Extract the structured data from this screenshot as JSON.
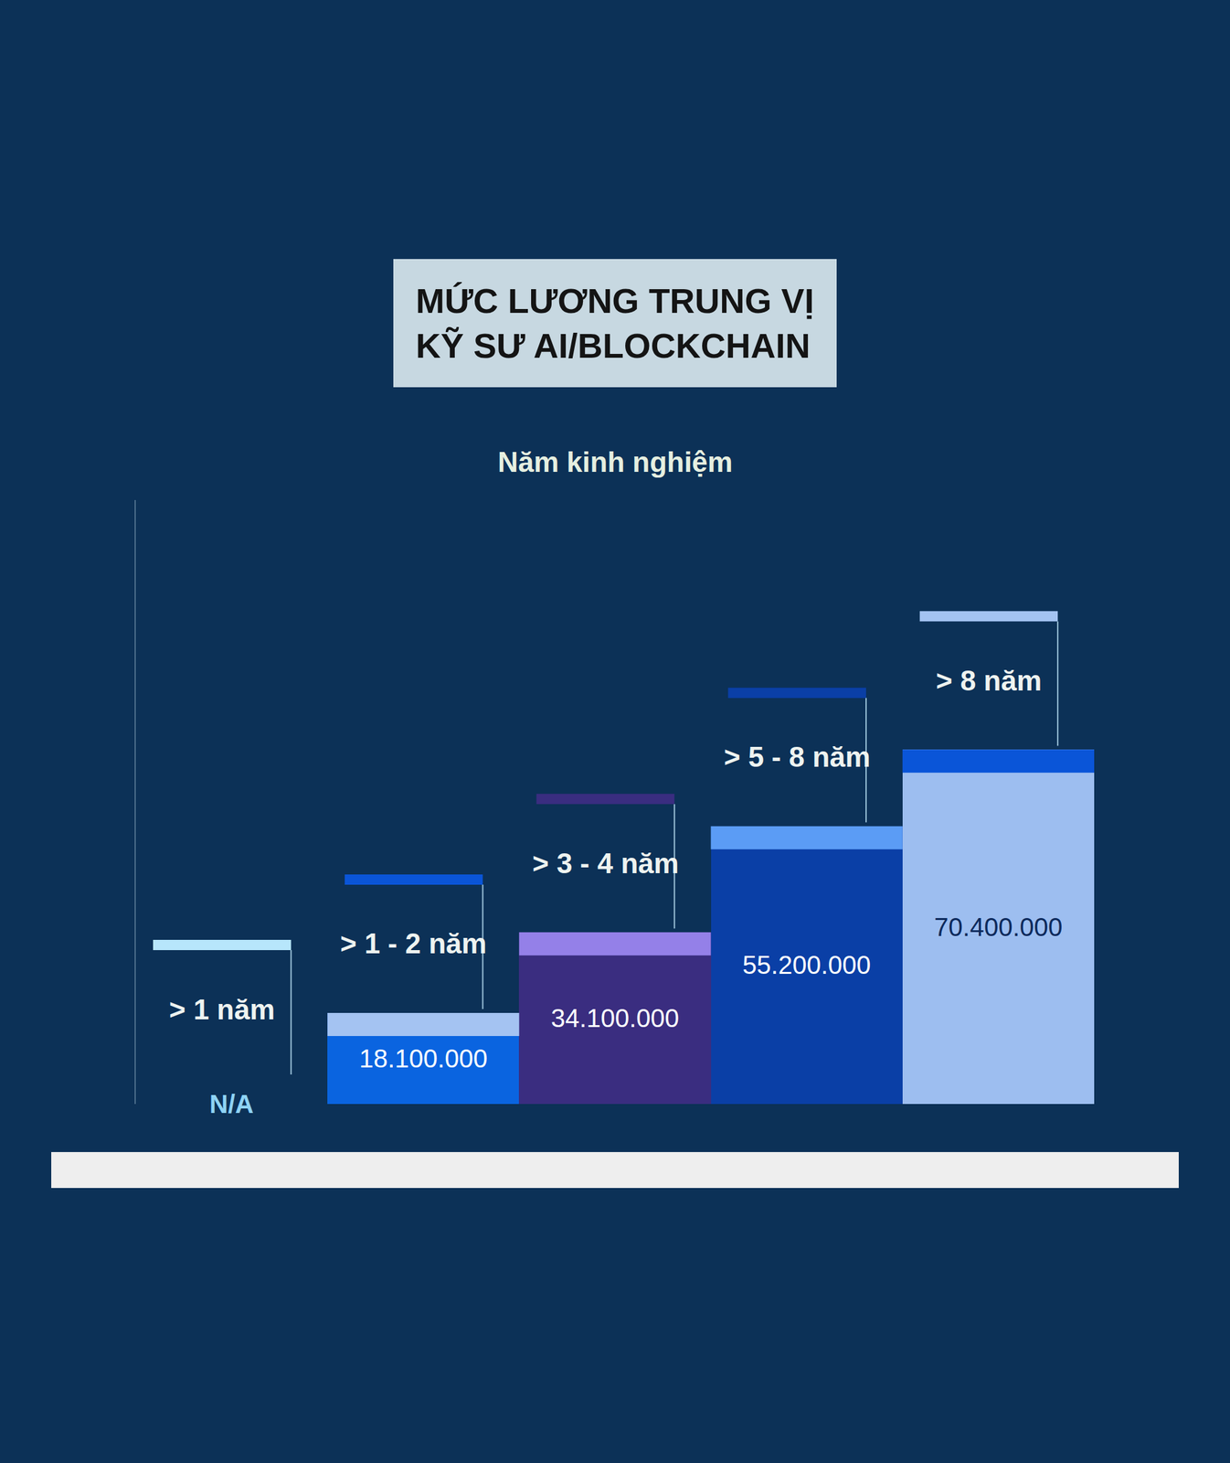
{
  "chart_data": {
    "type": "bar",
    "title": "MỨC LƯƠNG TRUNG VỊ\nKỸ SƯ AI/BLOCKCHAIN",
    "subtitle": "Năm kinh nghiệm",
    "categories": [
      "> 1 năm",
      "> 1 - 2 năm",
      "> 3 - 4 năm",
      "> 5 - 8 năm",
      "> 8 năm"
    ],
    "values": [
      null,
      18100000,
      34100000,
      55200000,
      70400000
    ],
    "value_labels": [
      "N/A",
      "18.100.000",
      "34.100.000",
      "55.200.000",
      "70.400.000"
    ],
    "colors": [
      "#ade3fb",
      "#0a64e0",
      "#3a2d80",
      "#0a3fa6",
      "#9dbef0"
    ],
    "ylim": [
      0,
      120000000
    ],
    "data_labels": true,
    "tick_labels": false,
    "grid": false
  }
}
